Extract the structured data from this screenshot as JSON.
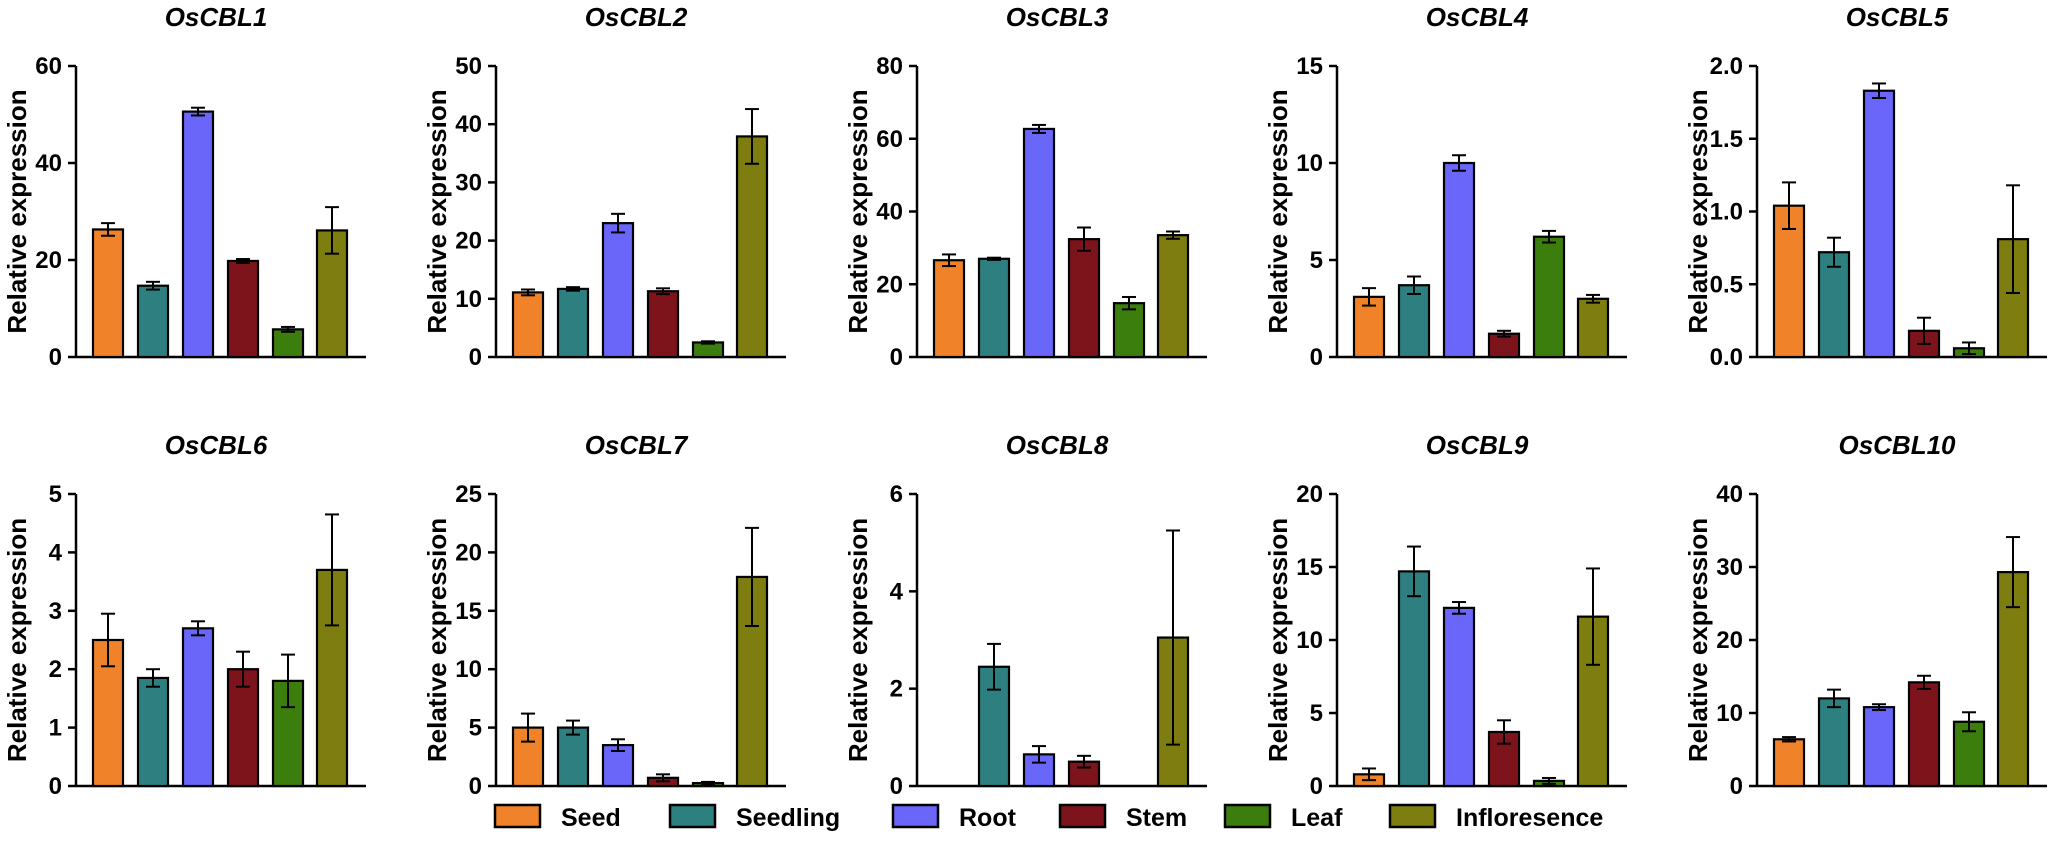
{
  "chart_data": [
    {
      "type": "bar",
      "title": "OsCBL1",
      "ylabel": "Relative expression",
      "ylim": [
        0,
        60
      ],
      "yticks": [
        "0",
        "20",
        "40",
        "60"
      ],
      "categories": [
        "Seed",
        "Seedling",
        "Root",
        "Stem",
        "Leaf",
        "Infloresence"
      ],
      "values": [
        26.3,
        14.7,
        50.6,
        19.8,
        5.7,
        26.1
      ],
      "errors": [
        1.3,
        0.8,
        0.8,
        0.4,
        0.5,
        4.8
      ]
    },
    {
      "type": "bar",
      "title": "OsCBL2",
      "ylabel": "Relative expression",
      "ylim": [
        0,
        50
      ],
      "yticks": [
        "0",
        "10",
        "20",
        "30",
        "40",
        "50"
      ],
      "categories": [
        "Seed",
        "Seedling",
        "Root",
        "Stem",
        "Leaf",
        "Infloresence"
      ],
      "values": [
        11.1,
        11.7,
        23.0,
        11.3,
        2.5,
        37.9
      ],
      "errors": [
        0.5,
        0.3,
        1.6,
        0.5,
        0.2,
        4.7
      ]
    },
    {
      "type": "bar",
      "title": "OsCBL3",
      "ylabel": "Relative expression",
      "ylim": [
        0,
        80
      ],
      "yticks": [
        "0",
        "20",
        "40",
        "60",
        "80"
      ],
      "categories": [
        "Seed",
        "Seedling",
        "Root",
        "Stem",
        "Leaf",
        "Infloresence"
      ],
      "values": [
        26.6,
        27.0,
        62.7,
        32.4,
        14.8,
        33.5
      ],
      "errors": [
        1.6,
        0.3,
        1.1,
        3.2,
        1.7,
        1.0
      ]
    },
    {
      "type": "bar",
      "title": "OsCBL4",
      "ylabel": "Relative expression",
      "ylim": [
        0,
        15
      ],
      "yticks": [
        "0",
        "5",
        "10",
        "15"
      ],
      "categories": [
        "Seed",
        "Seedling",
        "Root",
        "Stem",
        "Leaf",
        "Infloresence"
      ],
      "values": [
        3.1,
        3.7,
        10.0,
        1.2,
        6.2,
        3.0
      ],
      "errors": [
        0.45,
        0.45,
        0.4,
        0.15,
        0.3,
        0.2
      ]
    },
    {
      "type": "bar",
      "title": "OsCBL5",
      "ylabel": "Relative expression",
      "ylim": [
        0,
        2.0
      ],
      "yticks": [
        "0.0",
        "0.5",
        "1.0",
        "1.5",
        "2.0"
      ],
      "categories": [
        "Seed",
        "Seedling",
        "Root",
        "Stem",
        "Leaf",
        "Infloresence"
      ],
      "values": [
        1.04,
        0.72,
        1.83,
        0.18,
        0.06,
        0.81
      ],
      "errors": [
        0.16,
        0.1,
        0.05,
        0.09,
        0.04,
        0.37
      ]
    },
    {
      "type": "bar",
      "title": "OsCBL6",
      "ylabel": "Relative expression",
      "ylim": [
        0,
        5
      ],
      "yticks": [
        "0",
        "1",
        "2",
        "3",
        "4",
        "5"
      ],
      "categories": [
        "Seed",
        "Seedling",
        "Root",
        "Stem",
        "Leaf",
        "Infloresence"
      ],
      "values": [
        2.5,
        1.85,
        2.7,
        2.0,
        1.8,
        3.7
      ],
      "errors": [
        0.45,
        0.15,
        0.12,
        0.3,
        0.45,
        0.95
      ]
    },
    {
      "type": "bar",
      "title": "OsCBL7",
      "ylabel": "Relative expression",
      "ylim": [
        0,
        25
      ],
      "yticks": [
        "0",
        "5",
        "10",
        "15",
        "20",
        "25"
      ],
      "categories": [
        "Seed",
        "Seedling",
        "Root",
        "Stem",
        "Leaf",
        "Infloresence"
      ],
      "values": [
        5.0,
        5.0,
        3.5,
        0.7,
        0.25,
        17.9
      ],
      "errors": [
        1.2,
        0.6,
        0.5,
        0.3,
        0.1,
        4.2
      ]
    },
    {
      "type": "bar",
      "title": "OsCBL8",
      "ylabel": "Relative expression",
      "ylim": [
        0,
        6
      ],
      "yticks": [
        "0",
        "2",
        "4",
        "6"
      ],
      "categories": [
        "Seed",
        "Seedling",
        "Root",
        "Stem",
        "Leaf",
        "Infloresence"
      ],
      "values": [
        0.0,
        2.45,
        0.65,
        0.5,
        0.0,
        3.05
      ],
      "errors": [
        0.0,
        0.47,
        0.17,
        0.12,
        0.0,
        2.2
      ]
    },
    {
      "type": "bar",
      "title": "OsCBL9",
      "ylabel": "Relative expression",
      "ylim": [
        0,
        20
      ],
      "yticks": [
        "0",
        "5",
        "10",
        "15",
        "20"
      ],
      "categories": [
        "Seed",
        "Seedling",
        "Root",
        "Stem",
        "Leaf",
        "Infloresence"
      ],
      "values": [
        0.8,
        14.7,
        12.2,
        3.7,
        0.35,
        11.6
      ],
      "errors": [
        0.4,
        1.7,
        0.4,
        0.8,
        0.2,
        3.3
      ]
    },
    {
      "type": "bar",
      "title": "OsCBL10",
      "ylabel": "Relative expression",
      "ylim": [
        0,
        40
      ],
      "yticks": [
        "0",
        "10",
        "20",
        "30",
        "40"
      ],
      "categories": [
        "Seed",
        "Seedling",
        "Root",
        "Stem",
        "Leaf",
        "Infloresence"
      ],
      "values": [
        6.4,
        12.0,
        10.8,
        14.2,
        8.8,
        29.3
      ],
      "errors": [
        0.3,
        1.2,
        0.4,
        0.9,
        1.3,
        4.8
      ]
    }
  ],
  "legend": [
    {
      "label": "Seed",
      "color": "#F0822A"
    },
    {
      "label": "Seedling",
      "color": "#2E8080"
    },
    {
      "label": "Root",
      "color": "#6B66FA"
    },
    {
      "label": "Stem",
      "color": "#7D141B"
    },
    {
      "label": "Leaf",
      "color": "#3B7E0E"
    },
    {
      "label": "Infloresence",
      "color": "#7D7D10"
    }
  ]
}
